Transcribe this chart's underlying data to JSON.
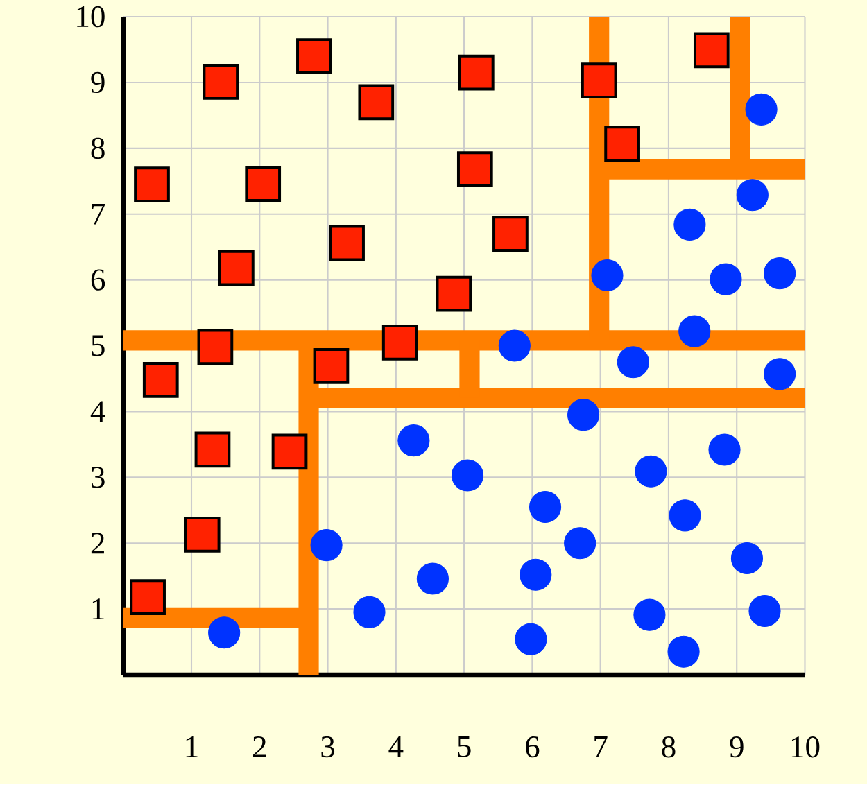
{
  "chart_data": {
    "type": "scatter",
    "xlim": [
      0,
      10
    ],
    "ylim": [
      0,
      10
    ],
    "xticks": [
      1,
      2,
      3,
      4,
      5,
      6,
      7,
      8,
      9,
      10
    ],
    "yticks": [
      1,
      2,
      3,
      4,
      5,
      6,
      7,
      8,
      9,
      10
    ],
    "grid": true,
    "series": [
      {
        "type": "line",
        "color": "#ff7f00",
        "marker": "none",
        "line_style": "solid",
        "x": [
          0,
          10
        ],
        "values": [
          5.08,
          5.08
        ]
      },
      {
        "type": "line",
        "color": "#ff7f00",
        "marker": "none",
        "line_style": "solid",
        "x": [
          6.98,
          6.98
        ],
        "values": [
          5.08,
          10
        ]
      },
      {
        "type": "line",
        "color": "#ff7f00",
        "marker": "none",
        "line_style": "solid",
        "x": [
          6.98,
          10
        ],
        "values": [
          7.68,
          7.68
        ]
      },
      {
        "type": "line",
        "color": "#ff7f00",
        "marker": "none",
        "line_style": "solid",
        "x": [
          9.05,
          9.05
        ],
        "values": [
          7.68,
          10
        ]
      },
      {
        "type": "line",
        "color": "#ff7f00",
        "marker": "none",
        "line_style": "solid",
        "x": [
          2.72,
          2.72
        ],
        "values": [
          0,
          5.08
        ]
      },
      {
        "type": "line",
        "color": "#ff7f00",
        "marker": "none",
        "line_style": "solid",
        "x": [
          0,
          2.72
        ],
        "values": [
          0.86,
          0.86
        ]
      },
      {
        "type": "line",
        "color": "#ff7f00",
        "marker": "none",
        "line_style": "solid",
        "x": [
          2.72,
          10
        ],
        "values": [
          4.21,
          4.21
        ]
      },
      {
        "type": "line",
        "color": "#ff7f00",
        "marker": "none",
        "line_style": "solid",
        "x": [
          5.08,
          5.08
        ],
        "values": [
          4.21,
          5.08
        ]
      },
      {
        "color": "#ff2200",
        "marker": "square",
        "x": [
          1.43,
          2.8,
          3.71,
          5.18,
          0.42,
          2.05,
          5.16,
          3.28,
          1.66,
          4.85,
          1.35,
          4.06,
          0.55,
          3.05,
          1.31,
          2.44,
          1.16,
          0.36,
          6.98,
          8.63,
          7.32,
          5.68
        ],
        "values": [
          9.01,
          9.4,
          8.7,
          9.15,
          7.45,
          7.46,
          7.68,
          6.56,
          6.18,
          5.79,
          4.98,
          5.05,
          4.48,
          4.69,
          3.42,
          3.39,
          2.13,
          1.18,
          9.03,
          9.49,
          8.07,
          6.7
        ]
      },
      {
        "color": "#0033ff",
        "marker": "circle",
        "x": [
          9.36,
          9.23,
          8.31,
          8.84,
          9.63,
          7.1,
          8.38,
          5.74,
          7.48,
          9.63,
          6.75,
          8.82,
          5.05,
          7.74,
          6.19,
          8.24,
          6.7,
          9.15,
          6.05,
          7.72,
          9.41,
          5.98,
          8.22,
          4.26,
          2.98,
          4.54,
          3.61,
          1.48
        ],
        "values": [
          8.59,
          7.29,
          6.84,
          6.01,
          6.1,
          6.07,
          5.22,
          5.0,
          4.75,
          4.57,
          3.95,
          3.42,
          3.03,
          3.09,
          2.55,
          2.42,
          2.0,
          1.77,
          1.52,
          0.91,
          0.97,
          0.54,
          0.35,
          3.56,
          1.97,
          1.46,
          0.95,
          0.64
        ]
      }
    ]
  }
}
